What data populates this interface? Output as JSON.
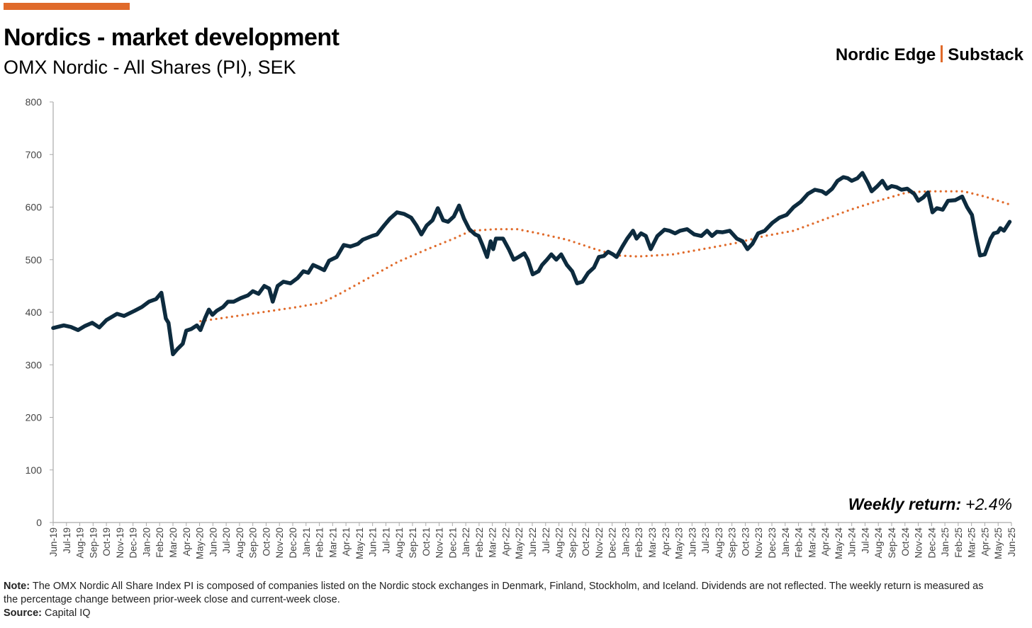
{
  "header": {
    "title": "Nordics - market development",
    "subtitle": "OMX Nordic - All Shares (PI), SEK",
    "brand_left": "Nordic Edge",
    "brand_right": "Substack",
    "accent_color": "#e06a2a"
  },
  "weekly_return": {
    "label": "Weekly return:",
    "value": "+2.4%"
  },
  "footer": {
    "note_label": "Note:",
    "note_text": "The OMX Nordic All Share Index PI is composed of companies listed on the Nordic stock exchanges in Denmark, Finland, Stockholm, and Iceland. Dividends are not reflected. The weekly return is measured as the percentage change between prior-week close and current-week close.",
    "source_label": "Source:",
    "source_text": "Capital IQ"
  },
  "chart_data": {
    "type": "line",
    "title": "",
    "xlabel": "",
    "ylabel": "",
    "ylim": [
      0,
      800
    ],
    "y_ticks": [
      "0",
      "100",
      "200",
      "300",
      "400",
      "500",
      "600",
      "700",
      "800"
    ],
    "x_ticks": [
      "Jun-19",
      "Jul-19",
      "Aug-19",
      "Sep-19",
      "Oct-19",
      "Nov-19",
      "Dec-19",
      "Jan-20",
      "Feb-20",
      "Mar-20",
      "Apr-20",
      "May-20",
      "Jun-20",
      "Jul-20",
      "Aug-20",
      "Sep-20",
      "Oct-20",
      "Nov-20",
      "Dec-20",
      "Jan-21",
      "Feb-21",
      "Mar-21",
      "Apr-21",
      "May-21",
      "Jun-21",
      "Jul-21",
      "Aug-21",
      "Sep-21",
      "Oct-21",
      "Nov-21",
      "Dec-21",
      "Jan-22",
      "Feb-22",
      "Mar-22",
      "Apr-22",
      "May-22",
      "Jun-22",
      "Jul-22",
      "Aug-22",
      "Sep-22",
      "Oct-22",
      "Nov-22",
      "Dec-22",
      "Jan-23",
      "Feb-23",
      "Mar-23",
      "Apr-23",
      "May-23",
      "Jun-23",
      "Jul-23",
      "Aug-23",
      "Sep-23",
      "Oct-23",
      "Nov-23",
      "Dec-23",
      "Jan-24",
      "Feb-24",
      "Mar-24",
      "Apr-24",
      "May-24",
      "Jun-24",
      "Jul-24",
      "Aug-24",
      "Sep-24",
      "Oct-24",
      "Nov-24",
      "Dec-24",
      "Jan-25",
      "Feb-25",
      "Mar-25",
      "Apr-25",
      "May-25",
      "Jun-25"
    ],
    "grid": false,
    "legend": "none",
    "series": [
      {
        "style": "solid-thick",
        "color": "#0d2b3e",
        "points": [
          [
            "2019-06-01",
            370
          ],
          [
            "2019-06-25",
            375
          ],
          [
            "2019-07-11",
            372
          ],
          [
            "2019-07-27",
            366
          ],
          [
            "2019-08-13",
            374
          ],
          [
            "2019-08-29",
            380
          ],
          [
            "2019-09-15",
            371
          ],
          [
            "2019-10-01",
            385
          ],
          [
            "2019-10-25",
            397
          ],
          [
            "2019-11-11",
            393
          ],
          [
            "2019-12-05",
            403
          ],
          [
            "2019-12-21",
            410
          ],
          [
            "2020-01-07",
            420
          ],
          [
            "2020-01-23",
            425
          ],
          [
            "2020-02-05",
            437
          ],
          [
            "2020-02-15",
            388
          ],
          [
            "2020-02-21",
            380
          ],
          [
            "2020-03-01",
            320
          ],
          [
            "2020-03-11",
            330
          ],
          [
            "2020-03-23",
            340
          ],
          [
            "2020-04-01",
            365
          ],
          [
            "2020-04-12",
            368
          ],
          [
            "2020-04-25",
            375
          ],
          [
            "2020-05-03",
            366
          ],
          [
            "2020-05-14",
            390
          ],
          [
            "2020-05-22",
            405
          ],
          [
            "2020-05-30",
            395
          ],
          [
            "2020-06-10",
            403
          ],
          [
            "2020-06-24",
            410
          ],
          [
            "2020-07-05",
            420
          ],
          [
            "2020-07-18",
            420
          ],
          [
            "2020-08-04",
            427
          ],
          [
            "2020-08-20",
            432
          ],
          [
            "2020-09-01",
            440
          ],
          [
            "2020-09-14",
            435
          ],
          [
            "2020-09-27",
            450
          ],
          [
            "2020-10-08",
            445
          ],
          [
            "2020-10-16",
            420
          ],
          [
            "2020-10-27",
            450
          ],
          [
            "2020-11-10",
            458
          ],
          [
            "2020-11-26",
            455
          ],
          [
            "2020-12-12",
            465
          ],
          [
            "2020-12-25",
            478
          ],
          [
            "2021-01-06",
            475
          ],
          [
            "2021-01-17",
            490
          ],
          [
            "2021-01-30",
            485
          ],
          [
            "2021-02-12",
            480
          ],
          [
            "2021-02-23",
            498
          ],
          [
            "2021-03-10",
            505
          ],
          [
            "2021-03-26",
            528
          ],
          [
            "2021-04-11",
            525
          ],
          [
            "2021-04-28",
            530
          ],
          [
            "2021-05-09",
            538
          ],
          [
            "2021-05-30",
            545
          ],
          [
            "2021-06-11",
            548
          ],
          [
            "2021-06-27",
            565
          ],
          [
            "2021-07-10",
            578
          ],
          [
            "2021-07-26",
            590
          ],
          [
            "2021-08-12",
            587
          ],
          [
            "2021-08-28",
            580
          ],
          [
            "2021-09-10",
            565
          ],
          [
            "2021-09-21",
            548
          ],
          [
            "2021-10-03",
            565
          ],
          [
            "2021-10-16",
            575
          ],
          [
            "2021-10-28",
            598
          ],
          [
            "2021-11-10",
            575
          ],
          [
            "2021-11-21",
            572
          ],
          [
            "2021-12-04",
            582
          ],
          [
            "2021-12-16",
            603
          ],
          [
            "2021-12-27",
            578
          ],
          [
            "2022-01-09",
            558
          ],
          [
            "2022-01-22",
            548
          ],
          [
            "2022-01-30",
            545
          ],
          [
            "2022-02-09",
            527
          ],
          [
            "2022-02-19",
            505
          ],
          [
            "2022-02-27",
            535
          ],
          [
            "2022-03-03",
            520
          ],
          [
            "2022-03-09",
            540
          ],
          [
            "2022-03-25",
            540
          ],
          [
            "2022-04-08",
            520
          ],
          [
            "2022-04-19",
            500
          ],
          [
            "2022-04-30",
            505
          ],
          [
            "2022-05-13",
            512
          ],
          [
            "2022-05-21",
            500
          ],
          [
            "2022-06-02",
            472
          ],
          [
            "2022-06-15",
            478
          ],
          [
            "2022-06-23",
            490
          ],
          [
            "2022-07-04",
            500
          ],
          [
            "2022-07-14",
            510
          ],
          [
            "2022-07-25",
            500
          ],
          [
            "2022-08-06",
            510
          ],
          [
            "2022-08-19",
            490
          ],
          [
            "2022-09-01",
            478
          ],
          [
            "2022-09-12",
            455
          ],
          [
            "2022-09-24",
            458
          ],
          [
            "2022-10-07",
            475
          ],
          [
            "2022-10-20",
            485
          ],
          [
            "2022-11-01",
            505
          ],
          [
            "2022-11-12",
            507
          ],
          [
            "2022-11-22",
            515
          ],
          [
            "2022-12-03",
            510
          ],
          [
            "2022-12-11",
            505
          ],
          [
            "2022-12-24",
            525
          ],
          [
            "2023-01-05",
            540
          ],
          [
            "2023-01-18",
            555
          ],
          [
            "2023-01-26",
            540
          ],
          [
            "2023-02-06",
            550
          ],
          [
            "2023-02-17",
            545
          ],
          [
            "2023-02-28",
            520
          ],
          [
            "2023-03-13",
            545
          ],
          [
            "2023-03-29",
            557
          ],
          [
            "2023-04-10",
            555
          ],
          [
            "2023-04-23",
            550
          ],
          [
            "2023-05-04",
            555
          ],
          [
            "2023-05-20",
            558
          ],
          [
            "2023-06-06",
            548
          ],
          [
            "2023-06-22",
            545
          ],
          [
            "2023-07-05",
            555
          ],
          [
            "2023-07-16",
            545
          ],
          [
            "2023-07-27",
            553
          ],
          [
            "2023-08-10",
            552
          ],
          [
            "2023-08-26",
            555
          ],
          [
            "2023-09-12",
            540
          ],
          [
            "2023-09-25",
            535
          ],
          [
            "2023-10-06",
            520
          ],
          [
            "2023-10-17",
            530
          ],
          [
            "2023-10-30",
            550
          ],
          [
            "2023-11-15",
            555
          ],
          [
            "2023-12-02",
            570
          ],
          [
            "2023-12-18",
            580
          ],
          [
            "2024-01-04",
            585
          ],
          [
            "2024-01-20",
            600
          ],
          [
            "2024-02-06",
            610
          ],
          [
            "2024-02-22",
            625
          ],
          [
            "2024-03-08",
            633
          ],
          [
            "2024-03-24",
            630
          ],
          [
            "2024-04-03",
            625
          ],
          [
            "2024-04-17",
            635
          ],
          [
            "2024-04-29",
            650
          ],
          [
            "2024-05-12",
            657
          ],
          [
            "2024-05-22",
            655
          ],
          [
            "2024-06-01",
            650
          ],
          [
            "2024-06-14",
            655
          ],
          [
            "2024-06-25",
            665
          ],
          [
            "2024-07-08",
            645
          ],
          [
            "2024-07-16",
            630
          ],
          [
            "2024-07-29",
            640
          ],
          [
            "2024-08-10",
            650
          ],
          [
            "2024-08-21",
            635
          ],
          [
            "2024-08-31",
            640
          ],
          [
            "2024-09-12",
            638
          ],
          [
            "2024-09-23",
            633
          ],
          [
            "2024-10-06",
            635
          ],
          [
            "2024-10-22",
            625
          ],
          [
            "2024-11-01",
            612
          ],
          [
            "2024-11-12",
            618
          ],
          [
            "2024-11-23",
            628
          ],
          [
            "2024-12-03",
            590
          ],
          [
            "2024-12-13",
            598
          ],
          [
            "2024-12-26",
            595
          ],
          [
            "2025-01-08",
            612
          ],
          [
            "2025-01-24",
            613
          ],
          [
            "2025-02-10",
            620
          ],
          [
            "2025-02-21",
            600
          ],
          [
            "2025-03-02",
            585
          ],
          [
            "2025-03-12",
            540
          ],
          [
            "2025-03-20",
            508
          ],
          [
            "2025-04-01",
            510
          ],
          [
            "2025-04-14",
            540
          ],
          [
            "2025-04-21",
            550
          ],
          [
            "2025-04-30",
            552
          ],
          [
            "2025-05-06",
            560
          ],
          [
            "2025-05-14",
            555
          ],
          [
            "2025-05-27",
            572
          ]
        ]
      },
      {
        "style": "dotted",
        "color": "#e06a2a",
        "points": [
          [
            "2020-05-03",
            383
          ],
          [
            "2020-07-18",
            392
          ],
          [
            "2020-10-08",
            402
          ],
          [
            "2020-12-12",
            410
          ],
          [
            "2021-02-07",
            418
          ],
          [
            "2021-03-17",
            435
          ],
          [
            "2021-05-22",
            465
          ],
          [
            "2021-07-26",
            495
          ],
          [
            "2021-09-29",
            518
          ],
          [
            "2021-12-04",
            540
          ],
          [
            "2022-01-13",
            555
          ],
          [
            "2022-03-09",
            558
          ],
          [
            "2022-04-27",
            558
          ],
          [
            "2022-06-15",
            550
          ],
          [
            "2022-08-19",
            538
          ],
          [
            "2022-10-23",
            520
          ],
          [
            "2022-12-11",
            508
          ],
          [
            "2023-01-29",
            506
          ],
          [
            "2023-04-18",
            510
          ],
          [
            "2023-07-08",
            522
          ],
          [
            "2023-09-12",
            532
          ],
          [
            "2023-11-15",
            545
          ],
          [
            "2024-01-20",
            555
          ],
          [
            "2024-03-24",
            575
          ],
          [
            "2024-05-28",
            595
          ],
          [
            "2024-08-01",
            612
          ],
          [
            "2024-10-06",
            628
          ],
          [
            "2024-11-23",
            630
          ],
          [
            "2025-02-13",
            630
          ],
          [
            "2025-04-01",
            620
          ],
          [
            "2025-05-27",
            605
          ]
        ]
      }
    ]
  }
}
